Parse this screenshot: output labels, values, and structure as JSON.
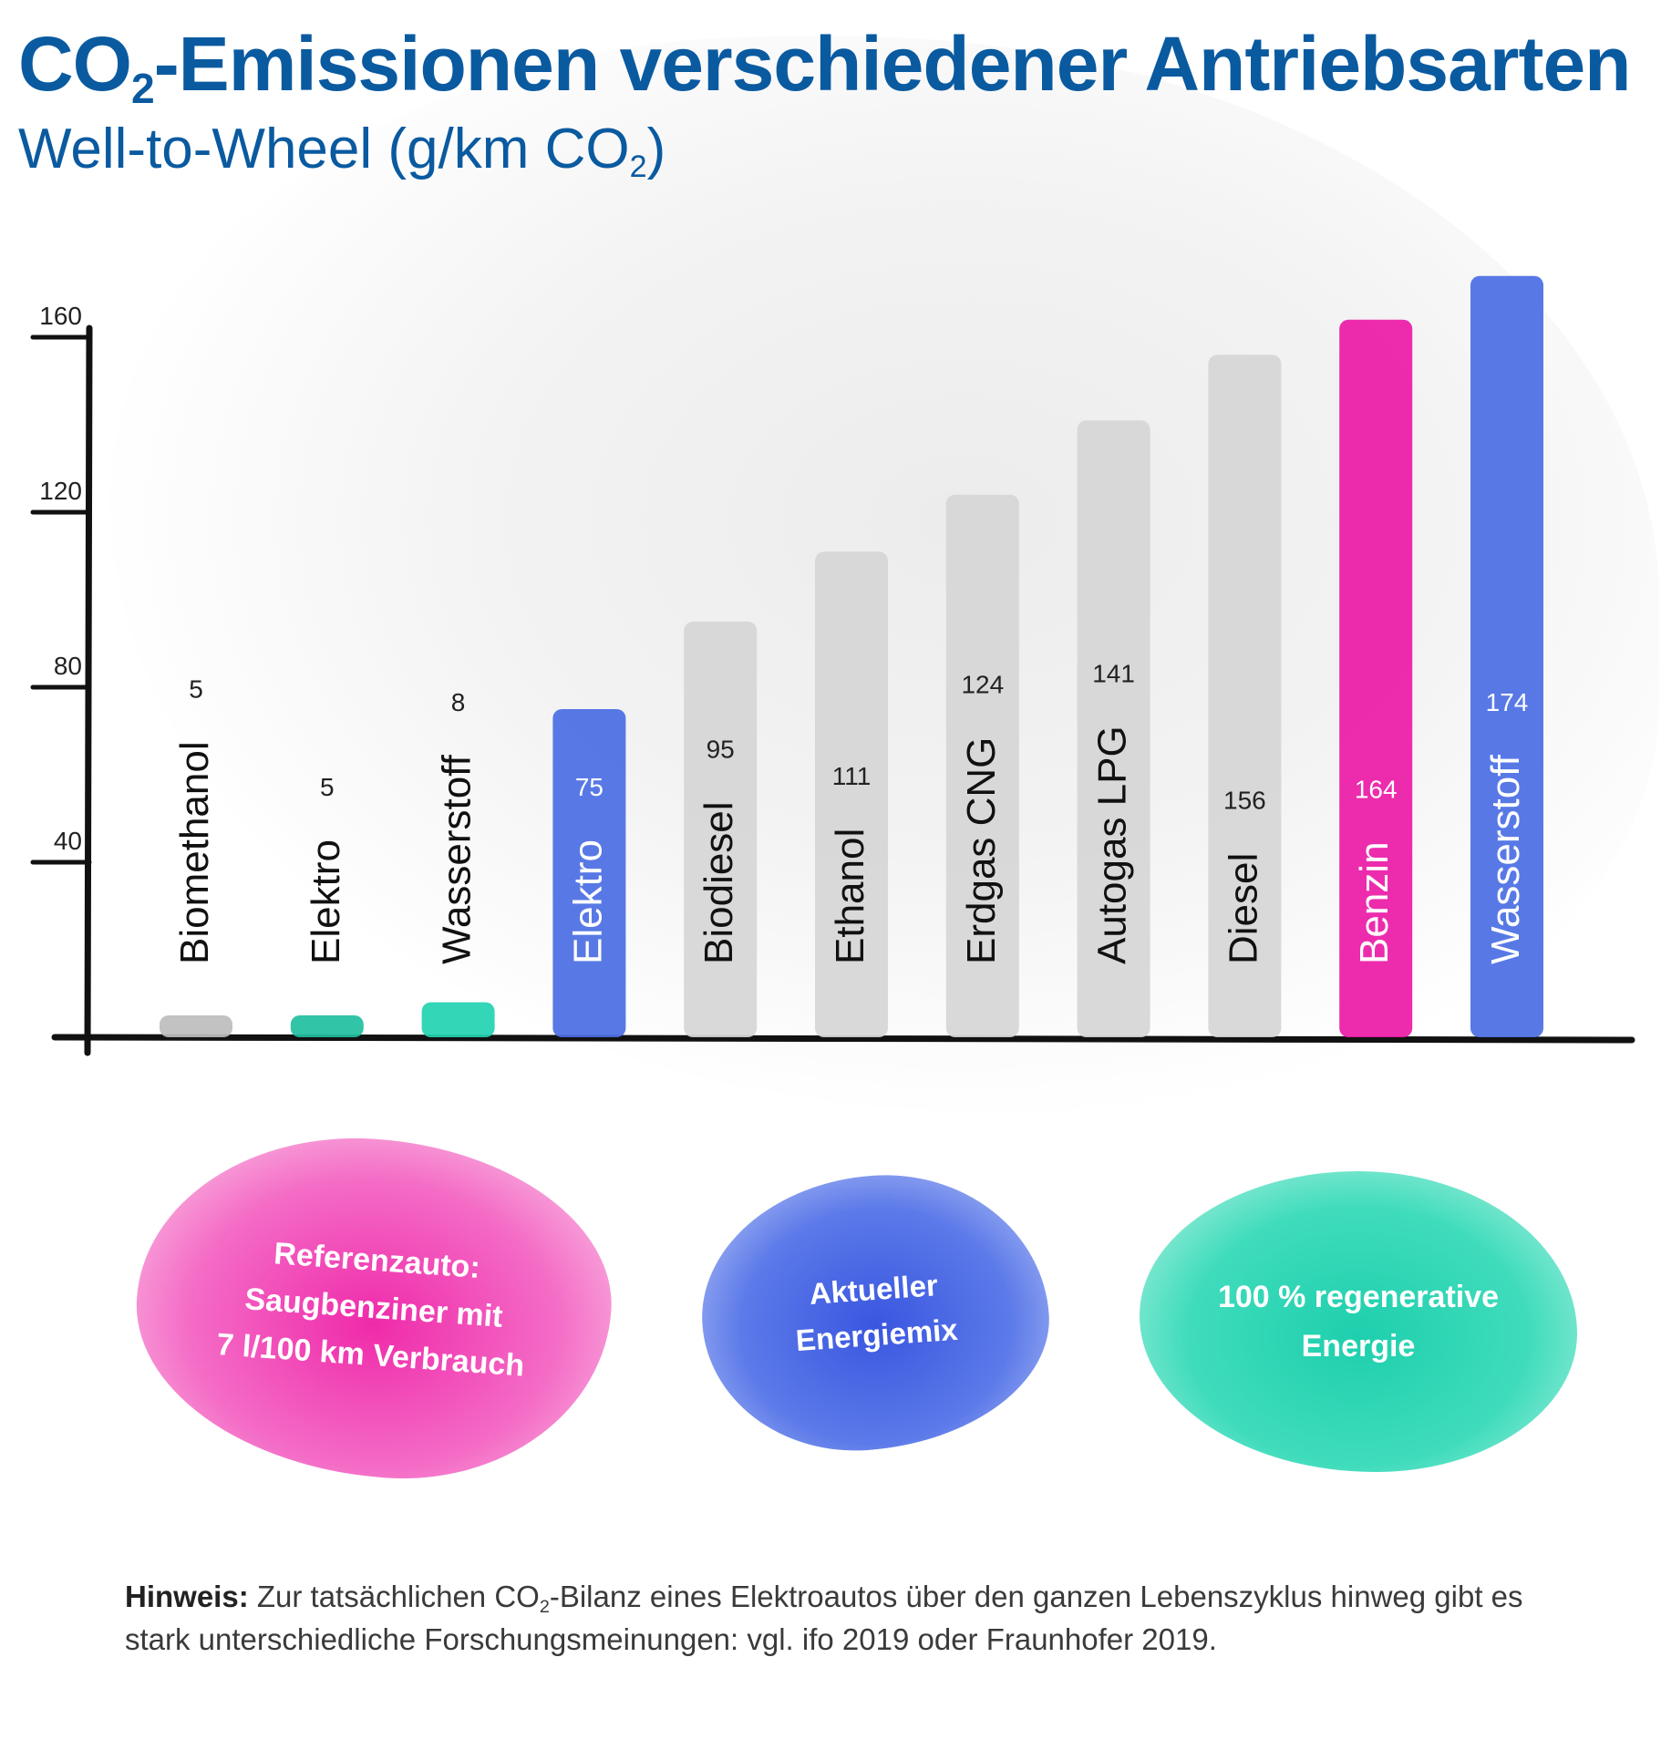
{
  "header": {
    "title_pre": "CO",
    "title_sub": "2",
    "title_post": "-Emissionen verschiedener Antriebsarten",
    "subtitle_pre": "Well-to-Wheel (g/km CO",
    "subtitle_sub": "2",
    "subtitle_post": ")"
  },
  "colors": {
    "grey": "#c8c8c8",
    "pink": "#ea1aa6",
    "blue": "#4a6ee3",
    "teal": "#22d2b0",
    "title": "#0a5aa0"
  },
  "chart_data": {
    "type": "bar",
    "title": "CO2-Emissionen verschiedener Antriebsarten",
    "subtitle": "Well-to-Wheel (g/km CO2)",
    "ylim": [
      0,
      160
    ],
    "yticks": [
      40,
      80,
      120,
      160
    ],
    "categories": [
      "Biomethanol",
      "Elektro",
      "Wasserstoff",
      "Elektro",
      "Biodiesel",
      "Ethanol",
      "Erdgas CNG",
      "Autogas LPG",
      "Diesel",
      "Benzin",
      "Wasserstoff"
    ],
    "values": [
      5,
      5,
      8,
      75,
      95,
      111,
      124,
      141,
      156,
      164,
      174
    ],
    "value_labels": [
      "5",
      "5",
      "8",
      "75",
      "95",
      "111",
      "124",
      "141",
      "156",
      "164",
      "174"
    ],
    "bar_colors": [
      "#bdbdbd",
      "#1fbf9f",
      "#22d2b0",
      "#4a6ee3",
      "#d6d6d6",
      "#d6d6d6",
      "#d6d6d6",
      "#d6d6d6",
      "#d6d6d6",
      "#ea1aa6",
      "#4a6ee3"
    ],
    "label_colors": [
      "#111111",
      "#111111",
      "#111111",
      "#ffffff",
      "#111111",
      "#111111",
      "#111111",
      "#111111",
      "#111111",
      "#ffffff",
      "#ffffff"
    ],
    "value_colors": [
      "#222222",
      "#222222",
      "#222222",
      "#ffffff",
      "#222222",
      "#222222",
      "#222222",
      "#222222",
      "#222222",
      "#ffffff",
      "#ffffff"
    ]
  },
  "legend": {
    "pink_text": "Referenzauto:\nSaugbenziner mit\n7 l/100 km Verbrauch",
    "blue_text": "Aktueller\nEnergiemix",
    "teal_text": "100 % regenerative\nEnergie"
  },
  "note": {
    "bold": "Hinweis:",
    "text_pre": " Zur tatsächlichen CO",
    "text_sub": "2",
    "text_post": "-Bilanz eines Elektroautos über den ganzen Lebenszyklus hinweg gibt es stark unterschiedliche Forschungsmeinungen: vgl. ifo 2019 oder Fraunhofer 2019."
  }
}
